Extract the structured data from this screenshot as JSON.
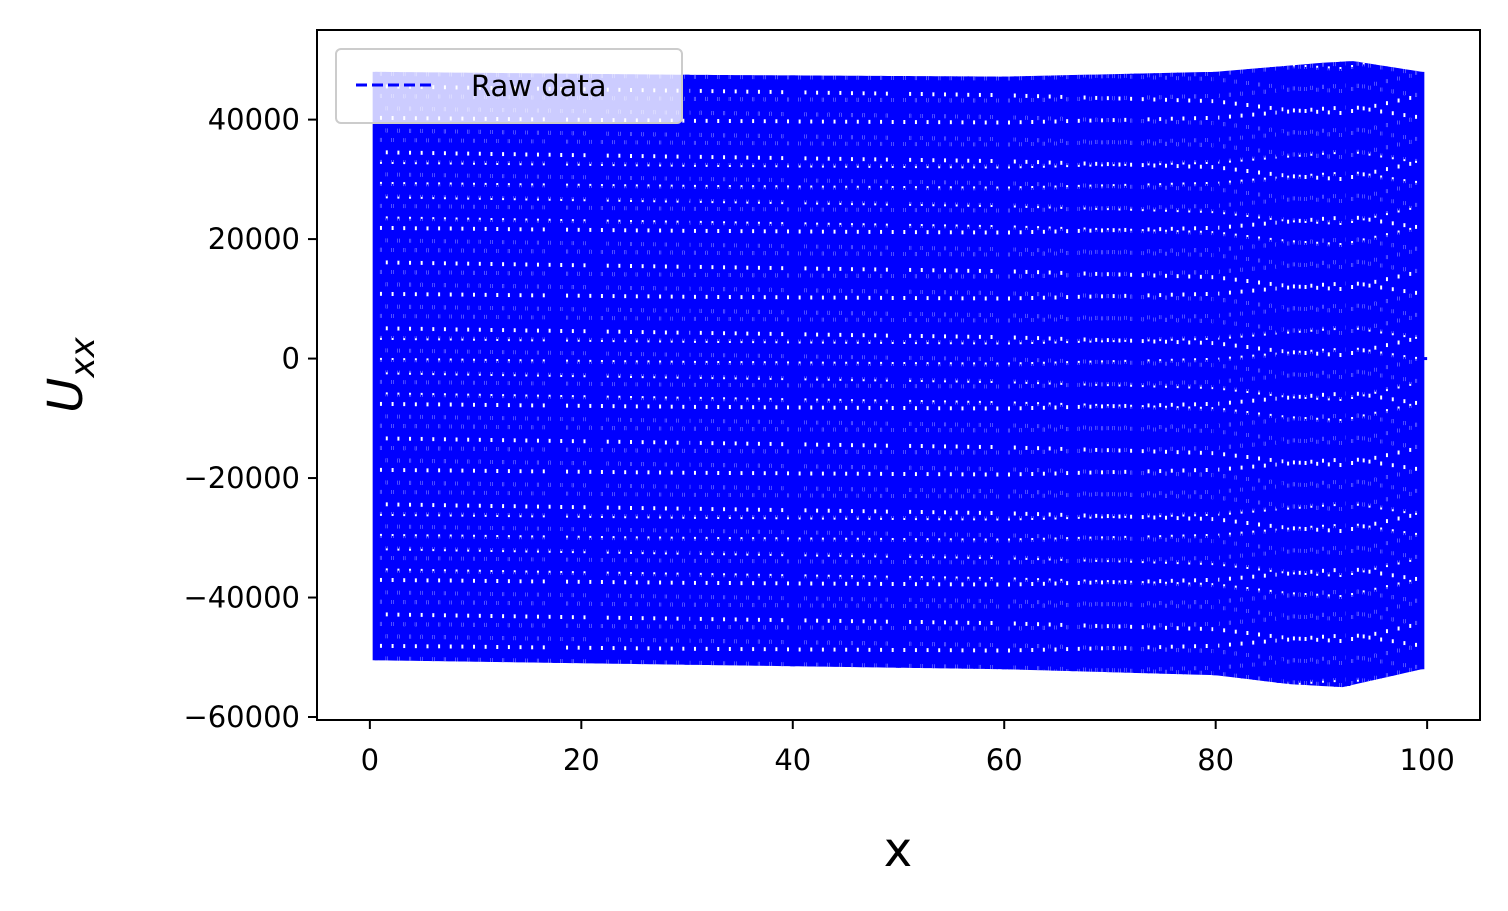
{
  "chart_data": {
    "type": "line",
    "title": "",
    "xlabel": "x",
    "ylabel_main": "U",
    "ylabel_sub": "xx",
    "xlim": [
      -5,
      105
    ],
    "ylim": [
      -60500,
      55000
    ],
    "xticks": [
      0,
      20,
      40,
      60,
      80,
      100
    ],
    "xtick_labels": [
      "0",
      "20",
      "40",
      "60",
      "80",
      "100"
    ],
    "yticks": [
      40000,
      20000,
      0,
      -20000,
      -40000,
      -60000
    ],
    "ytick_labels": [
      "40000",
      "20000",
      "0",
      "−20000",
      "−40000",
      "−60000"
    ],
    "grid": false,
    "legend": {
      "placement": "upper-left",
      "entries": [
        "Raw data"
      ]
    },
    "series": [
      {
        "name": "Raw data",
        "color": "#0000ff",
        "linestyle": "dashed",
        "x_range": [
          0.5,
          99.5
        ],
        "dense_oscillation": true,
        "upper_envelope": [
          [
            0.5,
            48000
          ],
          [
            30,
            47500
          ],
          [
            60,
            47200
          ],
          [
            80,
            48000
          ],
          [
            90,
            49500
          ],
          [
            93,
            49800
          ],
          [
            99.5,
            48000
          ]
        ],
        "lower_envelope": [
          [
            0.5,
            -50500
          ],
          [
            20,
            -51000
          ],
          [
            40,
            -51500
          ],
          [
            60,
            -52000
          ],
          [
            80,
            -53000
          ],
          [
            87,
            -54500
          ],
          [
            92,
            -55000
          ],
          [
            99.5,
            -52000
          ]
        ],
        "columns_x": [
          0.5,
          17.5,
          21.5,
          30,
          40,
          50,
          60,
          66.5,
          72.5,
          80,
          86,
          92.5,
          99.5
        ]
      }
    ]
  }
}
